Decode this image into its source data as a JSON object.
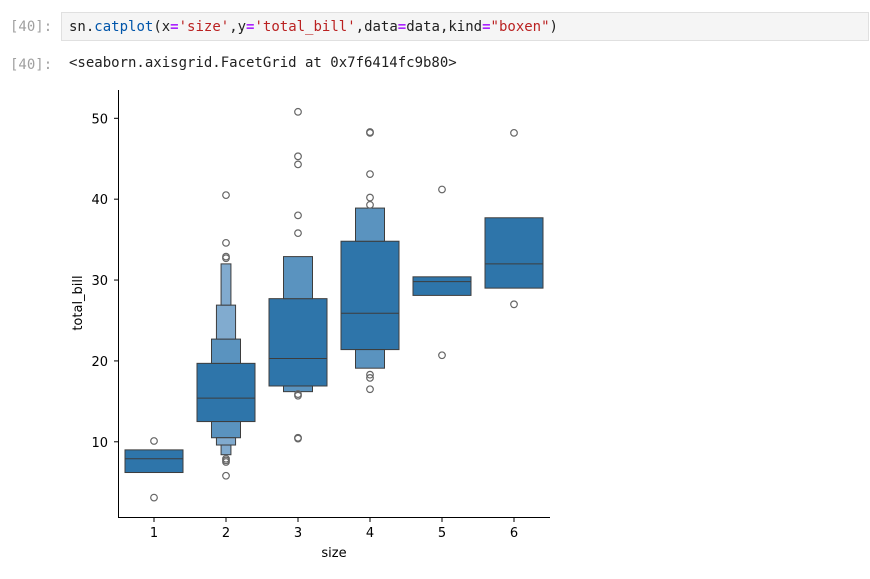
{
  "input_cell": {
    "prompt": "[40]:",
    "code_tokens": [
      {
        "text": "sn.",
        "cls": ""
      },
      {
        "text": "catplot",
        "cls": "c-func"
      },
      {
        "text": "(x",
        "cls": ""
      },
      {
        "text": "=",
        "cls": "c-op"
      },
      {
        "text": "'size'",
        "cls": "c-str"
      },
      {
        "text": ",y",
        "cls": ""
      },
      {
        "text": "=",
        "cls": "c-op"
      },
      {
        "text": "'total_bill'",
        "cls": "c-str"
      },
      {
        "text": ",data",
        "cls": ""
      },
      {
        "text": "=",
        "cls": "c-op"
      },
      {
        "text": "data,kind",
        "cls": ""
      },
      {
        "text": "=",
        "cls": "c-op"
      },
      {
        "text": "\"boxen\"",
        "cls": "c-str"
      },
      {
        "text": ")",
        "cls": ""
      }
    ]
  },
  "output_cell": {
    "prompt": "[40]:",
    "text": "<seaborn.axisgrid.FacetGrid at 0x7f6414fc9b80>"
  },
  "chart_data": {
    "type": "boxen",
    "xlabel": "size",
    "ylabel": "total_bill",
    "categories": [
      "1",
      "2",
      "3",
      "4",
      "5",
      "6"
    ],
    "ylim": [
      0.7,
      53.5
    ],
    "yticks": [
      10,
      20,
      30,
      40,
      50
    ],
    "grid": false,
    "colors": {
      "box_dark": "#2e75aa",
      "box_mid": "#5a93bf",
      "box_light": "#81abcf",
      "line": "#3d3d3d",
      "outlier_edge": "#666666"
    },
    "boxes": [
      {
        "category": "1",
        "median": 7.9,
        "levels": [
          {
            "low": 6.2,
            "high": 9.0
          }
        ]
      },
      {
        "category": "2",
        "median": 15.4,
        "levels": [
          {
            "low": 12.5,
            "high": 19.7
          },
          {
            "low": 10.5,
            "high": 22.7
          },
          {
            "low": 9.6,
            "high": 26.9
          },
          {
            "low": 8.4,
            "high": 32.0
          }
        ]
      },
      {
        "category": "3",
        "median": 20.3,
        "levels": [
          {
            "low": 16.9,
            "high": 27.7
          },
          {
            "low": 16.2,
            "high": 32.9
          }
        ]
      },
      {
        "category": "4",
        "median": 25.9,
        "levels": [
          {
            "low": 21.4,
            "high": 34.8
          },
          {
            "low": 19.1,
            "high": 38.9
          }
        ]
      },
      {
        "category": "5",
        "median": 29.8,
        "levels": [
          {
            "low": 28.1,
            "high": 30.4
          }
        ]
      },
      {
        "category": "6",
        "median": 32.0,
        "levels": [
          {
            "low": 29.0,
            "high": 37.7
          }
        ]
      }
    ],
    "outliers": [
      {
        "category": "1",
        "values": [
          10.1,
          3.1
        ]
      },
      {
        "category": "2",
        "values": [
          40.5,
          34.6,
          32.9,
          32.7,
          7.9,
          7.7,
          7.5,
          5.8
        ]
      },
      {
        "category": "3",
        "values": [
          50.8,
          45.3,
          44.3,
          38.0,
          35.8,
          15.9,
          15.7,
          10.5,
          10.4
        ]
      },
      {
        "category": "4",
        "values": [
          48.3,
          48.2,
          43.1,
          40.2,
          39.3,
          18.3,
          17.9,
          16.5
        ]
      },
      {
        "category": "5",
        "values": [
          41.2,
          20.7
        ]
      },
      {
        "category": "6",
        "values": [
          48.2,
          27.0
        ]
      }
    ]
  }
}
